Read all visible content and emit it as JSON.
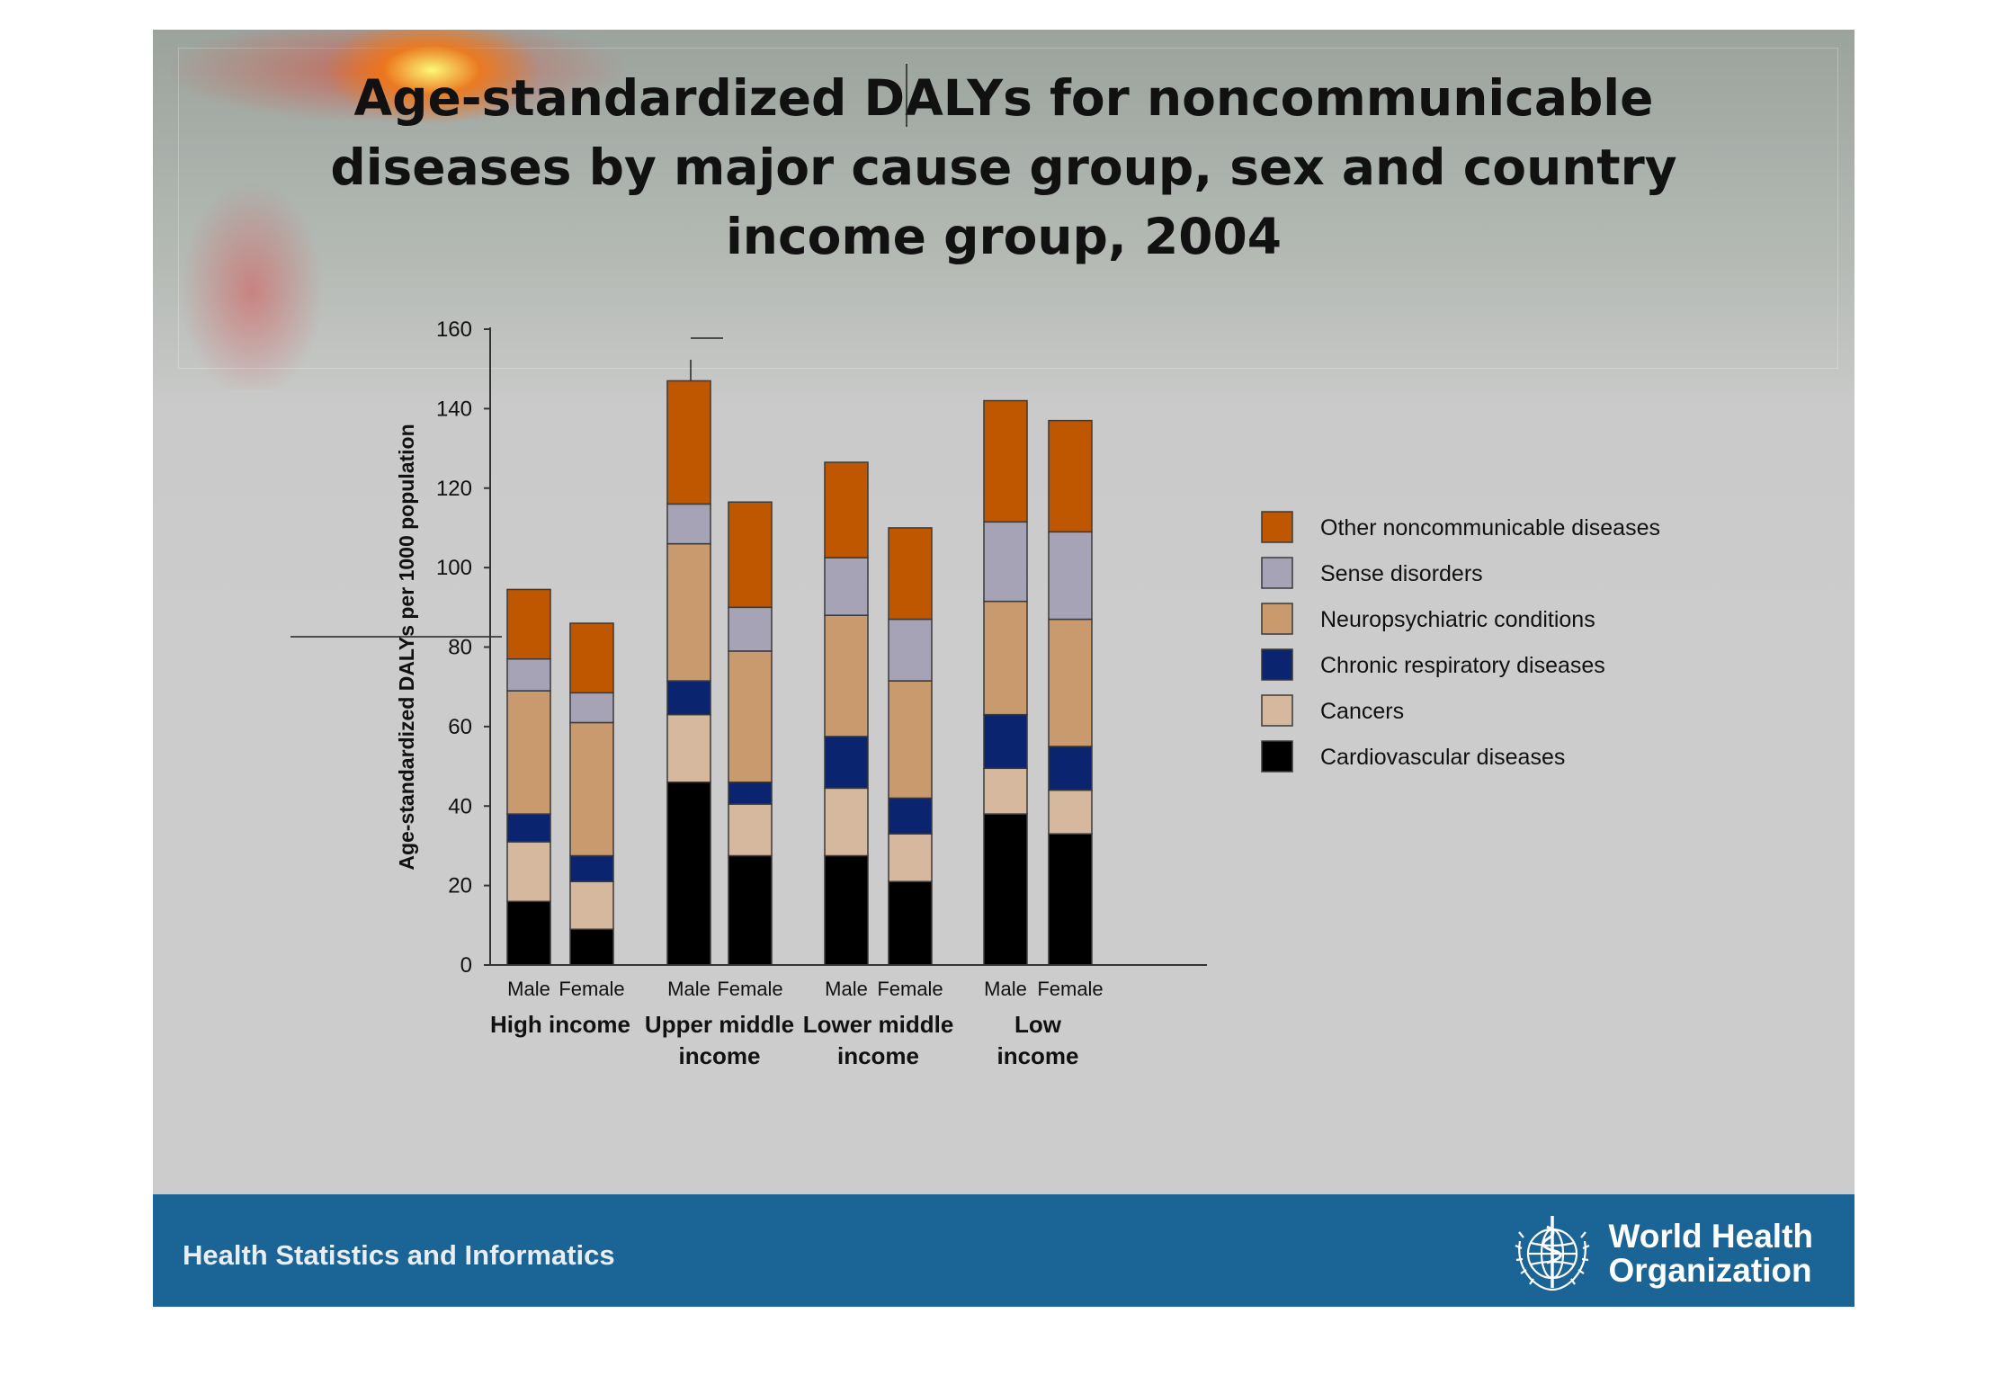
{
  "title": "Age-standardized DALYs for noncommunicable\ndiseases by major cause group,  sex and country\nincome group, 2004",
  "footer": {
    "text": "Health Statistics and Informatics",
    "org_line1": "World Health",
    "org_line2": "Organization"
  },
  "chart_data": {
    "type": "bar",
    "stacked": true,
    "ylabel": "Age-standardized DALYs per 1000 population",
    "ylim": [
      0,
      160
    ],
    "yticks": [
      0,
      20,
      40,
      60,
      80,
      100,
      120,
      140,
      160
    ],
    "grid": false,
    "legend_position": "right",
    "categories": [
      "Male",
      "Female",
      "Male",
      "Female",
      "Male",
      "Female",
      "Male",
      "Female"
    ],
    "groups": [
      {
        "label": "High income",
        "categories": [
          0,
          1
        ]
      },
      {
        "label": "Upper middle\nincome",
        "categories": [
          2,
          3
        ]
      },
      {
        "label": "Lower middle\nincome",
        "categories": [
          4,
          5
        ]
      },
      {
        "label": "Low\nincome",
        "categories": [
          6,
          7
        ]
      }
    ],
    "series": [
      {
        "name": "Cardiovascular diseases",
        "color": "#000000",
        "values": [
          16,
          9,
          46,
          27.5,
          27.5,
          21,
          38,
          33
        ]
      },
      {
        "name": "Cancers",
        "color": "#d6b89e",
        "values": [
          15,
          12,
          17,
          13,
          17,
          12,
          11.5,
          11
        ]
      },
      {
        "name": "Chronic respiratory diseases",
        "color": "#0a2470",
        "values": [
          7,
          6.5,
          8.5,
          5.5,
          13,
          9,
          13.5,
          11
        ]
      },
      {
        "name": "Neuropsychiatric conditions",
        "color": "#c99a6d",
        "values": [
          31,
          33.5,
          34.5,
          33,
          30.5,
          29.5,
          28.5,
          32
        ]
      },
      {
        "name": "Sense disorders",
        "color": "#a6a3b7",
        "values": [
          8,
          7.5,
          10,
          11,
          14.5,
          15.5,
          20,
          22
        ]
      },
      {
        "name": "Other noncommunicable diseases",
        "color": "#bf5600",
        "values": [
          17.5,
          17.5,
          31,
          26.5,
          24,
          23,
          30.5,
          28
        ]
      }
    ]
  }
}
